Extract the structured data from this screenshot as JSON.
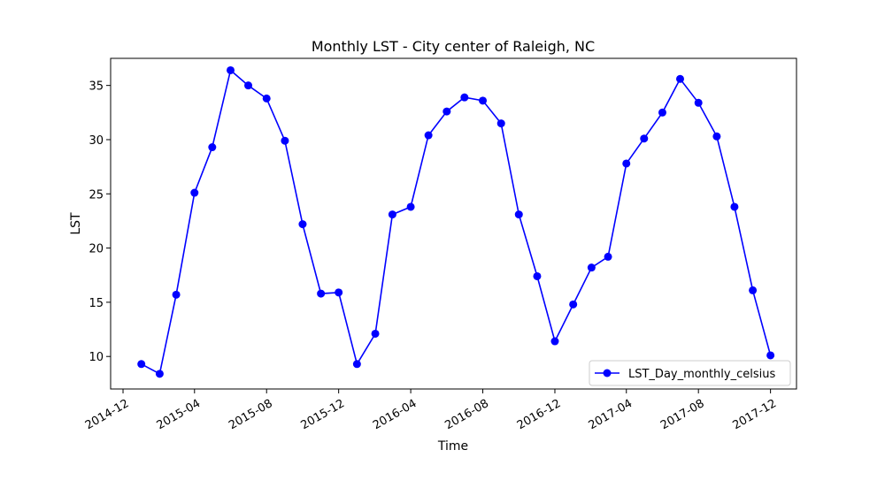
{
  "chart_data": {
    "type": "line",
    "title": "Monthly LST - City center of Raleigh, NC",
    "xlabel": "Time",
    "ylabel": "LST",
    "xlim": [
      "2014-11-10",
      "2018-01-14"
    ],
    "ylim": [
      7.0,
      37.5
    ],
    "x_ticks": [
      "2014-12",
      "2015-04",
      "2015-08",
      "2015-12",
      "2016-04",
      "2016-08",
      "2016-12",
      "2017-04",
      "2017-08",
      "2017-12"
    ],
    "y_ticks": [
      10,
      15,
      20,
      25,
      30,
      35
    ],
    "grid": false,
    "legend_position": "lower-right",
    "series": [
      {
        "name": "LST_Day_monthly_celsius",
        "color": "#0000ff",
        "marker": "circle",
        "x": [
          "2015-01-01",
          "2015-02-01",
          "2015-03-01",
          "2015-04-01",
          "2015-05-01",
          "2015-06-01",
          "2015-07-01",
          "2015-08-01",
          "2015-09-01",
          "2015-10-01",
          "2015-11-01",
          "2015-12-01",
          "2016-01-01",
          "2016-02-01",
          "2016-03-01",
          "2016-04-01",
          "2016-05-01",
          "2016-06-01",
          "2016-07-01",
          "2016-08-01",
          "2016-09-01",
          "2016-10-01",
          "2016-11-01",
          "2016-12-01",
          "2017-01-01",
          "2017-02-01",
          "2017-03-01",
          "2017-04-01",
          "2017-05-01",
          "2017-06-01",
          "2017-07-01",
          "2017-08-01",
          "2017-09-01",
          "2017-10-01",
          "2017-11-01",
          "2017-12-01"
        ],
        "values": [
          9.3,
          8.4,
          15.7,
          25.1,
          29.3,
          36.4,
          35.0,
          33.8,
          29.9,
          22.2,
          15.8,
          15.9,
          9.3,
          12.1,
          23.1,
          23.8,
          30.4,
          32.6,
          33.9,
          33.6,
          31.5,
          23.1,
          17.4,
          11.4,
          14.8,
          18.2,
          19.2,
          27.8,
          30.1,
          32.5,
          35.6,
          33.4,
          30.3,
          23.8,
          16.1,
          10.1
        ]
      }
    ]
  }
}
